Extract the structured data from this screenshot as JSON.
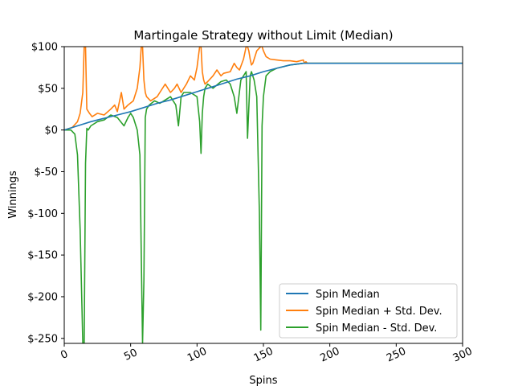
{
  "chart_data": {
    "type": "line",
    "title": "Martingale Strategy without Limit (Median)",
    "xlabel": "Spins",
    "ylabel": "Winnings",
    "xlim": [
      0,
      300
    ],
    "ylim": [
      -256,
      100
    ],
    "xticks": [
      0,
      50,
      100,
      150,
      200,
      250,
      300
    ],
    "xtick_labels": [
      "0",
      "50",
      "100",
      "150",
      "200",
      "250",
      "300"
    ],
    "yticks": [
      100,
      50,
      0,
      -50,
      -100,
      -150,
      -200,
      -250
    ],
    "ytick_labels": [
      "$100",
      "$50",
      "$0",
      "$-50",
      "$-100",
      "$-150",
      "$-200",
      "$-250"
    ],
    "legend_position": "lower-right",
    "grid": false,
    "colors": {
      "median": "#1f77b4",
      "plus": "#ff7f0e",
      "minus": "#2ca02c"
    },
    "series": [
      {
        "name": "Spin Median",
        "x": [
          0,
          10,
          20,
          30,
          40,
          50,
          60,
          70,
          80,
          90,
          100,
          110,
          120,
          130,
          140,
          150,
          160,
          170,
          180,
          300
        ],
        "values": [
          0,
          5,
          10,
          14,
          18,
          22,
          27,
          32,
          36,
          41,
          46,
          51,
          56,
          61,
          65,
          70,
          74,
          78,
          80,
          80
        ]
      },
      {
        "name": "Spin Median + Std. Dev.",
        "x": [
          0,
          6,
          10,
          12,
          14,
          15,
          16,
          17,
          19,
          21,
          25,
          30,
          35,
          38,
          40,
          43,
          45,
          48,
          52,
          55,
          57,
          58,
          59,
          60,
          61,
          62,
          65,
          70,
          72,
          76,
          80,
          83,
          85,
          88,
          92,
          95,
          98,
          100,
          102,
          103,
          104,
          105,
          106,
          108,
          112,
          115,
          118,
          120,
          125,
          128,
          130,
          132,
          135,
          137,
          138,
          139,
          140,
          141,
          142,
          145,
          148,
          149,
          150,
          152,
          155,
          160,
          165,
          170,
          175,
          180,
          181,
          182,
          183,
          300
        ],
        "values": [
          0,
          3,
          10,
          20,
          45,
          100,
          100,
          25,
          20,
          16,
          20,
          18,
          25,
          30,
          22,
          45,
          25,
          30,
          35,
          50,
          75,
          100,
          100,
          60,
          45,
          40,
          35,
          40,
          45,
          55,
          45,
          50,
          55,
          45,
          55,
          65,
          60,
          75,
          100,
          100,
          70,
          60,
          55,
          58,
          65,
          72,
          65,
          68,
          70,
          80,
          75,
          72,
          85,
          100,
          100,
          95,
          85,
          78,
          80,
          95,
          100,
          100,
          95,
          88,
          85,
          84,
          83,
          83,
          82,
          84,
          80,
          82,
          80,
          80
        ]
      },
      {
        "name": "Spin Median - Std. Dev.",
        "x": [
          0,
          5,
          8,
          10,
          12,
          14,
          15,
          16,
          17,
          18,
          20,
          25,
          30,
          35,
          40,
          45,
          48,
          50,
          52,
          55,
          57,
          58,
          59,
          60,
          61,
          62,
          64,
          68,
          72,
          75,
          80,
          84,
          86,
          88,
          90,
          95,
          100,
          102,
          103,
          104,
          105,
          106,
          108,
          112,
          118,
          122,
          125,
          128,
          130,
          133,
          135,
          137,
          138,
          140,
          141,
          143,
          145,
          147,
          148,
          149,
          150,
          152,
          155,
          160,
          165,
          170,
          175,
          180,
          300
        ],
        "values": [
          0,
          0,
          -5,
          -30,
          -120,
          -256,
          -256,
          -40,
          2,
          0,
          5,
          10,
          12,
          18,
          15,
          5,
          15,
          20,
          15,
          0,
          -30,
          -150,
          -256,
          -180,
          15,
          25,
          30,
          35,
          32,
          35,
          40,
          30,
          5,
          40,
          45,
          45,
          40,
          10,
          -28,
          20,
          40,
          50,
          55,
          50,
          58,
          60,
          55,
          40,
          20,
          60,
          65,
          70,
          -10,
          65,
          70,
          60,
          40,
          -100,
          -240,
          5,
          40,
          65,
          70,
          74,
          76,
          78,
          79,
          80,
          80
        ]
      }
    ]
  }
}
